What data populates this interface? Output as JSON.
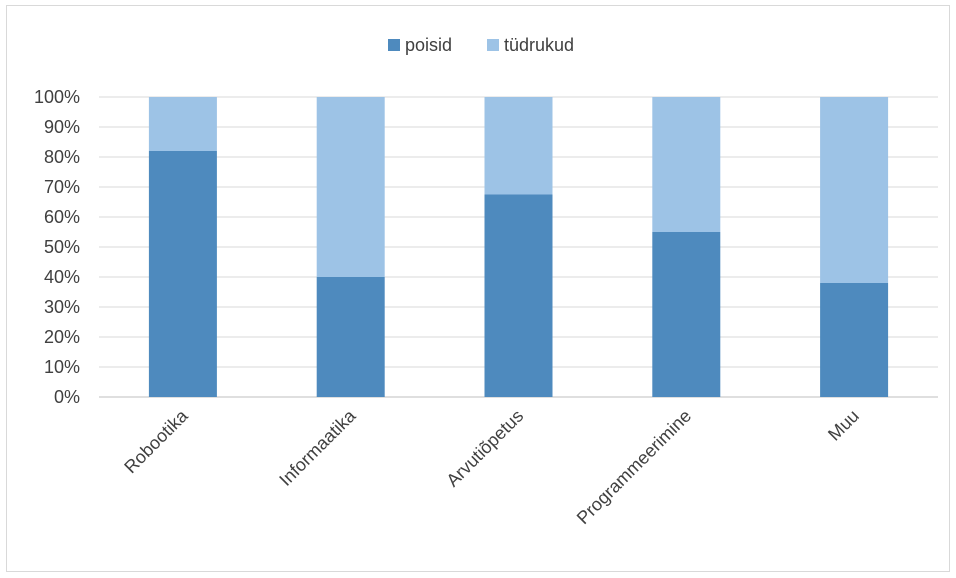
{
  "chart_data": {
    "type": "bar",
    "stacked": "percent",
    "categories": [
      "Robootika",
      "Informaatika",
      "Arvutiõpetus",
      "Programmeerimine",
      "Muu"
    ],
    "series": [
      {
        "name": "poisid",
        "color": "#4E8ABE",
        "values": [
          82,
          40,
          67.5,
          55,
          38
        ]
      },
      {
        "name": "tüdrukud",
        "color": "#9DC3E6",
        "values": [
          18,
          60,
          32.5,
          45,
          62
        ]
      }
    ],
    "y_ticks": [
      "0%",
      "10%",
      "20%",
      "30%",
      "40%",
      "50%",
      "60%",
      "70%",
      "80%",
      "90%",
      "100%"
    ],
    "ylim": [
      0,
      100
    ],
    "grid": true,
    "legend_position": "top"
  }
}
